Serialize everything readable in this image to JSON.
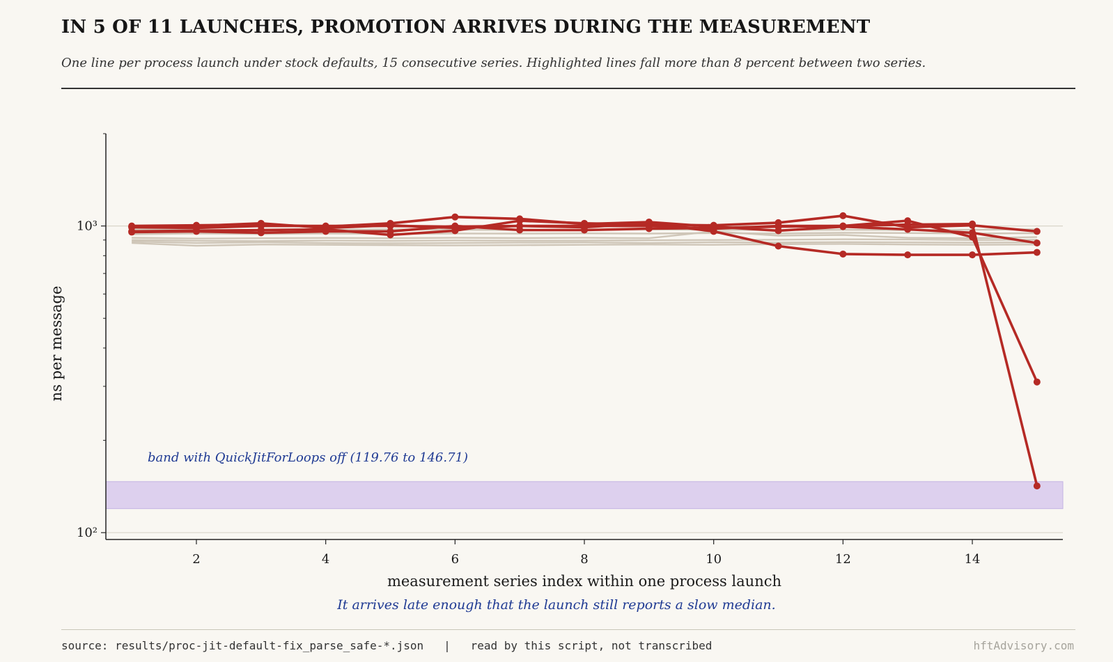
{
  "header": {
    "title": "IN 5 OF 11 LAUNCHES, PROMOTION ARRIVES DURING THE MEASUREMENT",
    "subtitle": "One line per process launch under stock defaults, 15 consecutive series. Highlighted lines fall more than 8 percent between two series."
  },
  "footer": {
    "source": "source: results/proc-jit-default-fix_parse_safe-*.json   |   read by this script, not transcribed",
    "brand": "hftAdvisory.com"
  },
  "colors": {
    "background": "#f9f7f2",
    "highlight": "#b52a25",
    "muted": "#cfc6b8",
    "band_fill": "#ddd0ee",
    "band_edge": "#c3b3e3",
    "annotation": "#1f3a93"
  },
  "chart_data": {
    "type": "line",
    "xlabel": "measurement series index within one process launch",
    "ylabel": "ns per message",
    "yscale": "log",
    "ylim": [
      95,
      2000
    ],
    "xlim": [
      0.6,
      15.4
    ],
    "xticks": [
      2,
      4,
      6,
      8,
      10,
      12,
      14
    ],
    "yticks": [
      {
        "value": 100,
        "label": "10²"
      },
      {
        "value": 1000,
        "label": "10³"
      }
    ],
    "x": [
      1,
      2,
      3,
      4,
      5,
      6,
      7,
      8,
      9,
      10,
      11,
      12,
      13,
      14,
      15
    ],
    "band": {
      "low": 119.76,
      "high": 146.71,
      "label": "band with QuickJitForLoops off (119.76 to 146.71)"
    },
    "note": "It arrives late enough that the launch still reports a slow median.",
    "series": [
      {
        "highlight": false,
        "values": [
          900,
          895,
          893,
          896,
          894,
          897,
          895,
          896,
          898,
          900,
          902,
          905,
          903,
          900,
          902
        ]
      },
      {
        "highlight": false,
        "values": [
          880,
          862,
          870,
          868,
          866,
          864,
          866,
          868,
          870,
          868,
          872,
          874,
          870,
          868,
          870
        ]
      },
      {
        "highlight": false,
        "values": [
          890,
          880,
          885,
          880,
          878,
          880,
          882,
          884,
          880,
          885,
          883,
          886,
          884,
          882,
          884
        ]
      },
      {
        "highlight": false,
        "values": [
          915,
          910,
          912,
          914,
          912,
          915,
          913,
          915,
          912,
          960,
          930,
          935,
          915,
          912,
          920
        ]
      },
      {
        "highlight": false,
        "values": [
          940,
          945,
          942,
          945,
          943,
          945,
          944,
          946,
          944,
          948,
          945,
          950,
          948,
          945,
          947
        ]
      },
      {
        "highlight": false,
        "values": [
          975,
          972,
          970,
          972,
          975,
          972,
          970,
          972,
          975,
          972,
          970,
          972,
          970,
          972,
          975
        ]
      },
      {
        "highlight": true,
        "values": [
          1000,
          1005,
          1010,
          995,
          1020,
          1070,
          1055,
          1015,
          1030,
          995,
          965,
          995,
          975,
          950,
          880
        ]
      },
      {
        "highlight": true,
        "values": [
          960,
          965,
          970,
          975,
          935,
          965,
          1040,
          1020,
          1010,
          1005,
          1025,
          1080,
          990,
          1005,
          960
        ]
      },
      {
        "highlight": true,
        "values": [
          995,
          1000,
          1020,
          985,
          1005,
          985,
          1000,
          990,
          1020,
          960,
          860,
          810,
          805,
          805,
          820
        ]
      },
      {
        "highlight": true,
        "values": [
          955,
          960,
          950,
          960,
          960,
          1000,
          970,
          970,
          980,
          985,
          995,
          1000,
          1040,
          920,
          310
        ]
      },
      {
        "highlight": true,
        "values": [
          990,
          985,
          1000,
          1000,
          1000,
          995,
          1000,
          1000,
          1000,
          980,
          1000,
          1000,
          1010,
          1015,
          142
        ]
      }
    ]
  }
}
